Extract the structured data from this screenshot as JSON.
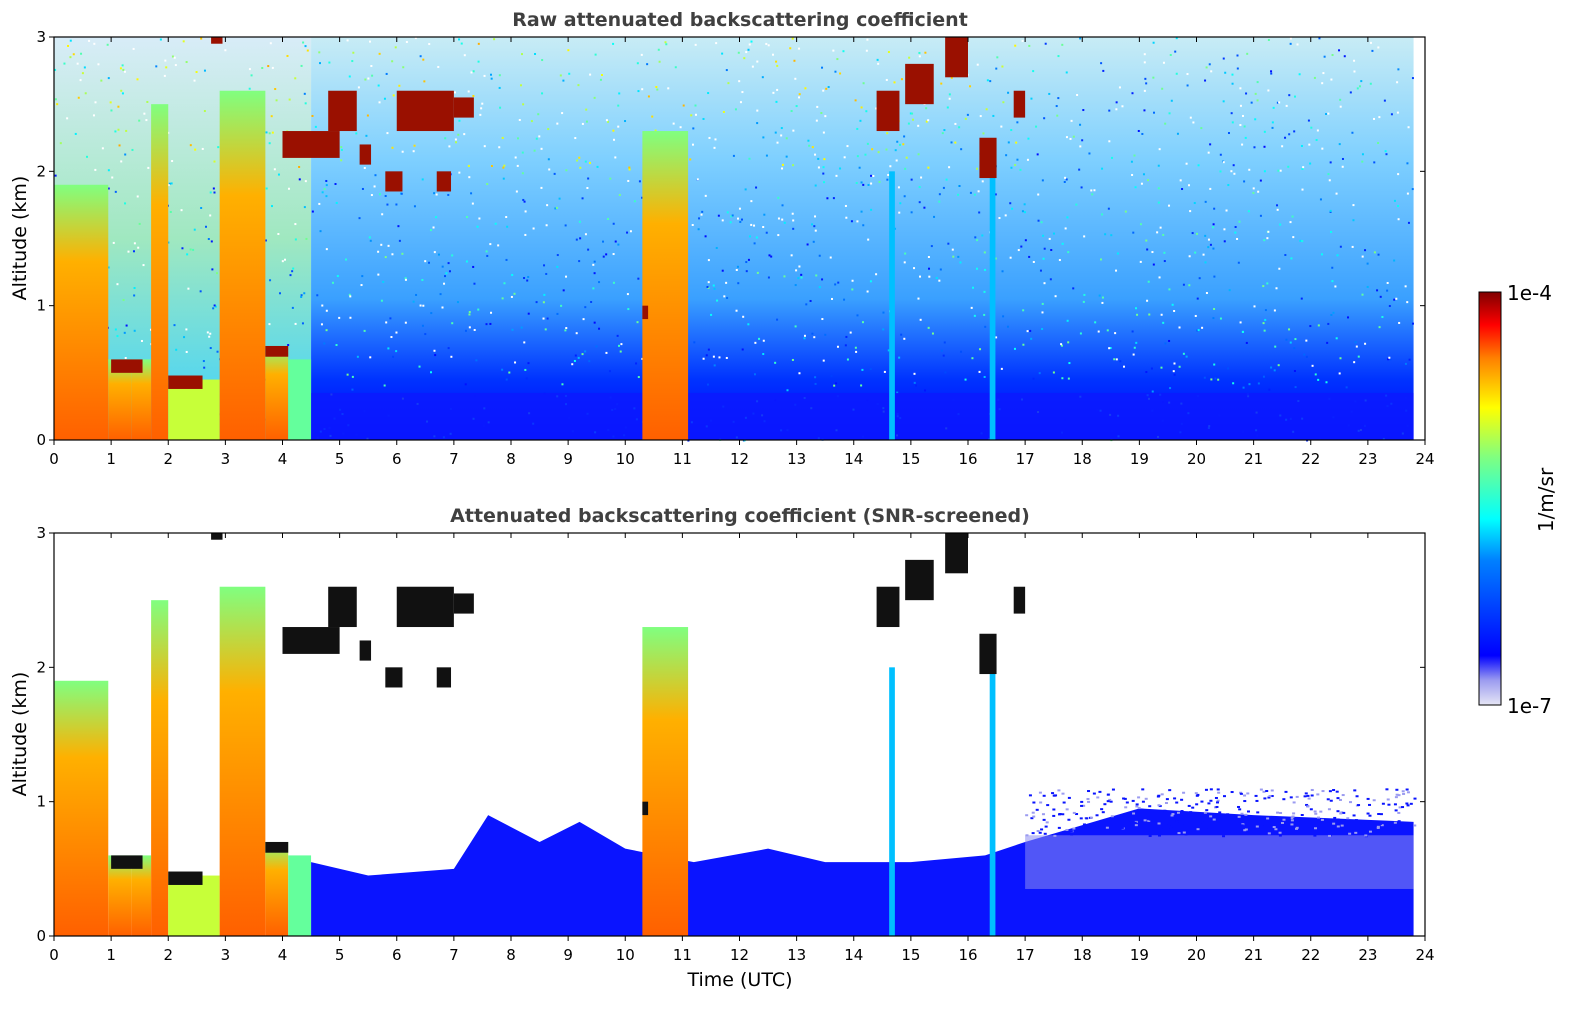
{
  "chart_data": [
    {
      "type": "heatmap",
      "title": "Raw attenuated backscattering coefficient",
      "xlabel": "",
      "ylabel": "Altitude (km)",
      "xlim": [
        0,
        24
      ],
      "ylim": [
        0,
        3
      ],
      "xticks": [
        "0",
        "1",
        "2",
        "3",
        "4",
        "5",
        "6",
        "7",
        "8",
        "9",
        "10",
        "11",
        "12",
        "13",
        "14",
        "15",
        "16",
        "17",
        "18",
        "19",
        "20",
        "21",
        "22",
        "23",
        "24"
      ],
      "yticks": [
        "0",
        "1",
        "2",
        "3"
      ],
      "data_end_time": 23.8,
      "columns": [
        {
          "t0": 0.0,
          "t1": 0.95,
          "top": 1.9,
          "value": -4.3
        },
        {
          "t0": 0.95,
          "t1": 1.35,
          "top": 0.6,
          "value": -4.6
        },
        {
          "t0": 1.35,
          "t1": 1.7,
          "top": 0.6,
          "value": -4.8
        },
        {
          "t0": 1.7,
          "t1": 2.0,
          "top": 2.5,
          "value": -4.4
        },
        {
          "t0": 2.0,
          "t1": 2.9,
          "top": 0.45,
          "value": -5.0
        },
        {
          "t0": 2.9,
          "t1": 3.7,
          "top": 2.6,
          "value": -4.3
        },
        {
          "t0": 3.7,
          "t1": 4.1,
          "top": 0.7,
          "value": -4.6
        },
        {
          "t0": 4.1,
          "t1": 4.5,
          "top": 0.6,
          "value": -5.3
        },
        {
          "t0": 10.3,
          "t1": 11.1,
          "top": 2.3,
          "value": -4.3
        },
        {
          "t0": 14.62,
          "t1": 14.72,
          "top": 2.0,
          "value": -5.8
        },
        {
          "t0": 16.38,
          "t1": 16.48,
          "top": 2.0,
          "value": -5.8
        }
      ],
      "clouds": [
        {
          "t0": 4.0,
          "t1": 5.0,
          "alt0": 2.1,
          "alt1": 2.3
        },
        {
          "t0": 4.8,
          "t1": 5.3,
          "alt0": 2.3,
          "alt1": 2.6
        },
        {
          "t0": 6.0,
          "t1": 7.0,
          "alt0": 2.3,
          "alt1": 2.6
        },
        {
          "t0": 7.0,
          "t1": 7.35,
          "alt0": 2.4,
          "alt1": 2.55
        },
        {
          "t0": 5.8,
          "t1": 6.1,
          "alt0": 1.85,
          "alt1": 2.0
        },
        {
          "t0": 6.7,
          "t1": 6.95,
          "alt0": 1.85,
          "alt1": 2.0
        },
        {
          "t0": 5.35,
          "t1": 5.55,
          "alt0": 2.05,
          "alt1": 2.2
        },
        {
          "t0": 15.6,
          "t1": 16.0,
          "alt0": 2.7,
          "alt1": 3.0
        },
        {
          "t0": 14.9,
          "t1": 15.4,
          "alt0": 2.5,
          "alt1": 2.8
        },
        {
          "t0": 14.4,
          "t1": 14.8,
          "alt0": 2.3,
          "alt1": 2.6
        },
        {
          "t0": 16.2,
          "t1": 16.5,
          "alt0": 1.95,
          "alt1": 2.25
        },
        {
          "t0": 16.8,
          "t1": 17.0,
          "alt0": 2.4,
          "alt1": 2.6
        },
        {
          "t0": 2.0,
          "t1": 2.6,
          "alt0": 0.38,
          "alt1": 0.48
        },
        {
          "t0": 1.0,
          "t1": 1.55,
          "alt0": 0.5,
          "alt1": 0.6
        },
        {
          "t0": 3.7,
          "t1": 4.1,
          "alt0": 0.62,
          "alt1": 0.7
        },
        {
          "t0": 2.75,
          "t1": 2.95,
          "alt0": 2.95,
          "alt1": 3.0
        },
        {
          "t0": 10.3,
          "t1": 10.4,
          "alt0": 0.9,
          "alt1": 1.0
        }
      ]
    },
    {
      "type": "heatmap",
      "title": "Attenuated backscattering coefficient (SNR-screened)",
      "xlabel": "Time (UTC)",
      "ylabel": "Altitude (km)",
      "xlim": [
        0,
        24
      ],
      "ylim": [
        0,
        3
      ],
      "xticks": [
        "0",
        "1",
        "2",
        "3",
        "4",
        "5",
        "6",
        "7",
        "8",
        "9",
        "10",
        "11",
        "12",
        "13",
        "14",
        "15",
        "16",
        "17",
        "18",
        "19",
        "20",
        "21",
        "22",
        "23",
        "24"
      ],
      "yticks": [
        "0",
        "1",
        "2",
        "3"
      ],
      "data_end_time": 23.8,
      "boundary_layer": [
        {
          "t": 4.5,
          "top": 0.55
        },
        {
          "t": 5.5,
          "top": 0.45
        },
        {
          "t": 7.0,
          "top": 0.5
        },
        {
          "t": 7.6,
          "top": 0.9
        },
        {
          "t": 8.5,
          "top": 0.7
        },
        {
          "t": 9.2,
          "top": 0.85
        },
        {
          "t": 10.0,
          "top": 0.65
        },
        {
          "t": 11.2,
          "top": 0.55
        },
        {
          "t": 12.5,
          "top": 0.65
        },
        {
          "t": 13.5,
          "top": 0.55
        },
        {
          "t": 15.0,
          "top": 0.55
        },
        {
          "t": 16.3,
          "top": 0.6
        },
        {
          "t": 17.0,
          "top": 0.7
        },
        {
          "t": 19.0,
          "top": 0.95
        },
        {
          "t": 21.0,
          "top": 0.9
        },
        {
          "t": 23.8,
          "top": 0.85
        }
      ]
    }
  ],
  "colorbar": {
    "label": "1/m/sr",
    "max_label": "1e-4",
    "min_label": "1e-7",
    "scale": "log",
    "colormap": "jet",
    "colors": [
      "#e6e6f5",
      "#9b9bf0",
      "#0000ff",
      "#0080ff",
      "#00ffff",
      "#80ff80",
      "#ffff00",
      "#ff8000",
      "#ff0000",
      "#800000"
    ]
  }
}
